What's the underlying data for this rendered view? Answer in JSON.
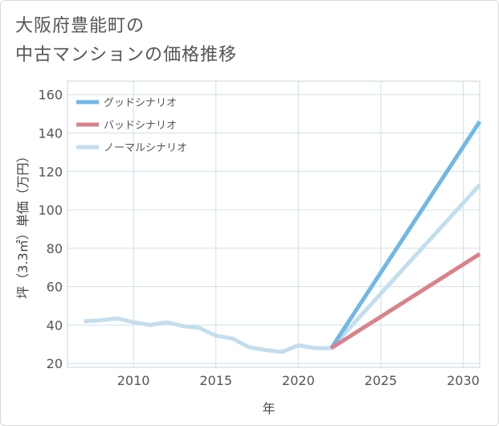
{
  "title_lines": [
    "大阪府豊能町の",
    "中古マンションの価格推移"
  ],
  "chart_data": {
    "type": "line",
    "xlabel": "年",
    "ylabel": "坪（3.3㎡）単価（万円）",
    "xlim": [
      2006,
      2031
    ],
    "ylim": [
      18,
      167
    ],
    "x_ticks": [
      2010,
      2015,
      2020,
      2025,
      2030
    ],
    "y_ticks": [
      20,
      40,
      60,
      80,
      100,
      120,
      140,
      160
    ],
    "grid": true,
    "legend_position": "top-left",
    "series": [
      {
        "name": "グッドシナリオ",
        "color": "#6fb8e6",
        "points": [
          [
            2022,
            28
          ],
          [
            2031,
            146
          ]
        ]
      },
      {
        "name": "バッドシナリオ",
        "color": "#db8189",
        "points": [
          [
            2022,
            28
          ],
          [
            2031,
            77
          ]
        ]
      },
      {
        "name": "ノーマルシナリオ",
        "color": "#c3deed",
        "points": [
          [
            2007,
            42
          ],
          [
            2008,
            42.5
          ],
          [
            2009,
            43.5
          ],
          [
            2010,
            41.5
          ],
          [
            2011,
            40
          ],
          [
            2012,
            41.5
          ],
          [
            2013,
            39.5
          ],
          [
            2014,
            38.5
          ],
          [
            2015,
            34.5
          ],
          [
            2016,
            33
          ],
          [
            2017,
            28.5
          ],
          [
            2018,
            27
          ],
          [
            2019,
            26
          ],
          [
            2020,
            29.5
          ],
          [
            2021,
            28
          ],
          [
            2022,
            28
          ],
          [
            2031,
            113
          ]
        ]
      }
    ]
  }
}
